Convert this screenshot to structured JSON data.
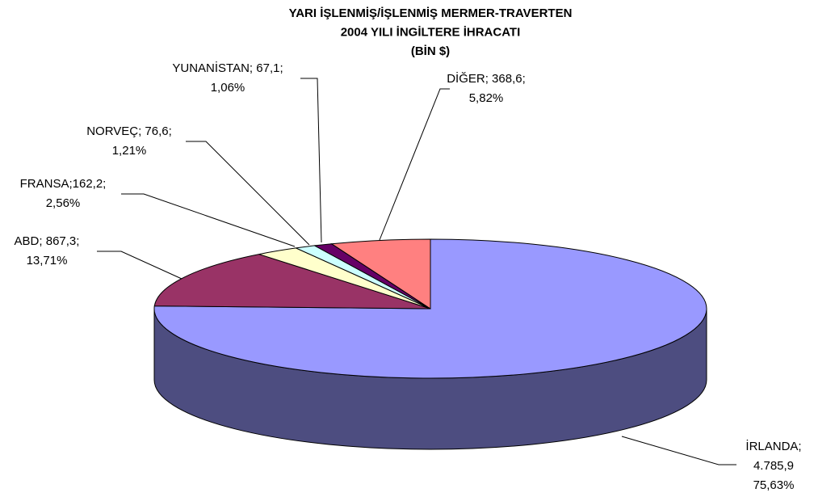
{
  "chart_data": {
    "type": "pie3d",
    "title": [
      "YARI İŞLENMİŞ/İŞLENMİŞ MERMER-TRAVERTEN",
      "2004 YILI İNGİLTERE İHRACATI",
      "(BİN $)"
    ],
    "categories": [
      "İRLANDA",
      "ABD",
      "FRANSA",
      "NORVEÇ",
      "YUNANİSTAN",
      "DİĞER"
    ],
    "values": [
      4785.9,
      867.3,
      162.2,
      76.6,
      67.1,
      368.6
    ],
    "colors": [
      "#9999ff",
      "#993366",
      "#ffffcc",
      "#ccffff",
      "#660066",
      "#ff8080"
    ],
    "labels": [
      [
        "İRLANDA;",
        "4.785,9",
        "75,63%"
      ],
      [
        "ABD; 867,3;",
        "13,71%"
      ],
      [
        "FRANSA;162,2;",
        "2,56%"
      ],
      [
        "NORVEÇ; 76,6;",
        "1,21%"
      ],
      [
        "YUNANİSTAN; 67,1;",
        "1,06%"
      ],
      [
        "DİĞER; 368,6;",
        "5,82%"
      ]
    ]
  }
}
